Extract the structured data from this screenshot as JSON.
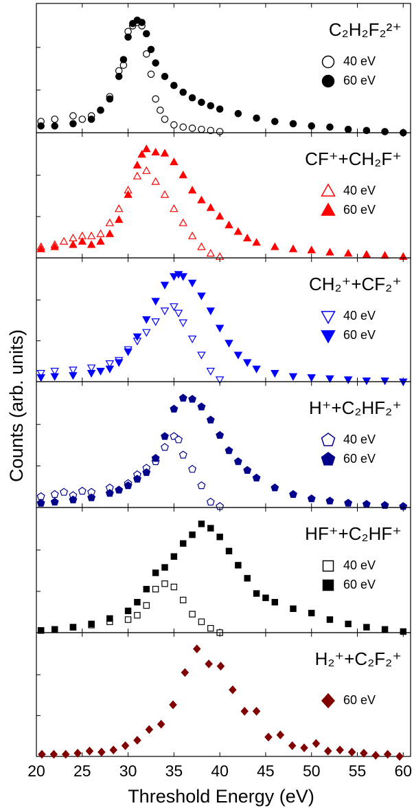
{
  "ylabel": "Counts (arb. units)",
  "chart_data": [
    {
      "type": "scatter",
      "title": "C₂H₂F₂²⁺",
      "xlim": [
        20,
        60.8
      ],
      "ylim": [
        0,
        1.1
      ],
      "series": [
        {
          "name": "40 eV",
          "color": "#000000",
          "marker": "circle",
          "filled": false,
          "x": [
            20.5,
            22,
            24,
            25,
            26,
            27,
            28,
            29,
            29.5,
            30,
            30.5,
            31,
            31.5,
            32,
            32.5,
            33,
            33.5,
            34,
            35,
            36,
            37,
            38,
            39,
            40
          ],
          "values": [
            0.1,
            0.12,
            0.15,
            0.12,
            0.15,
            0.2,
            0.32,
            0.55,
            0.6,
            0.9,
            0.95,
            0.98,
            0.95,
            0.7,
            0.52,
            0.3,
            0.2,
            0.12,
            0.07,
            0.05,
            0.04,
            0.03,
            0.02,
            0.01
          ]
        },
        {
          "name": "60 eV",
          "color": "#000000",
          "marker": "circle",
          "filled": true,
          "x": [
            20.5,
            22,
            24,
            26,
            27,
            28,
            29,
            29.5,
            30,
            30.5,
            31,
            31.5,
            32,
            32.5,
            33,
            34,
            35,
            36,
            37,
            38,
            39,
            40,
            42,
            44,
            46,
            48,
            50,
            52,
            54,
            56,
            58,
            60
          ],
          "values": [
            0.06,
            0.06,
            0.08,
            0.12,
            0.2,
            0.3,
            0.5,
            0.65,
            0.85,
            0.97,
            1.0,
            0.98,
            0.88,
            0.74,
            0.62,
            0.5,
            0.42,
            0.36,
            0.31,
            0.27,
            0.24,
            0.21,
            0.17,
            0.13,
            0.1,
            0.08,
            0.06,
            0.05,
            0.03,
            0.02,
            0.01,
            0.0
          ]
        }
      ]
    },
    {
      "type": "scatter",
      "title": "CF⁺+CH₂F⁺",
      "xlim": [
        20,
        60.8
      ],
      "ylim": [
        0,
        1.1
      ],
      "series": [
        {
          "name": "40 eV",
          "color": "#ff0000",
          "marker": "triangle-up",
          "filled": false,
          "x": [
            20.5,
            22,
            23,
            24,
            25,
            26,
            27,
            28,
            29,
            30,
            31,
            32,
            33,
            34,
            35,
            36,
            37,
            38,
            39,
            40
          ],
          "values": [
            0.1,
            0.12,
            0.15,
            0.18,
            0.2,
            0.2,
            0.22,
            0.32,
            0.45,
            0.62,
            0.75,
            0.8,
            0.7,
            0.58,
            0.45,
            0.32,
            0.2,
            0.1,
            0.04,
            0.01
          ]
        },
        {
          "name": "60 eV",
          "color": "#ff0000",
          "marker": "triangle-up",
          "filled": true,
          "x": [
            20.5,
            22,
            24,
            25,
            26,
            27,
            28,
            29,
            30,
            31,
            31.5,
            32,
            33,
            34,
            35,
            36,
            37,
            38,
            39,
            40,
            41,
            42,
            43,
            44,
            46,
            48,
            50,
            52,
            54,
            56,
            58,
            60
          ],
          "values": [
            0.08,
            0.1,
            0.12,
            0.15,
            0.12,
            0.15,
            0.22,
            0.35,
            0.58,
            0.85,
            0.95,
            1.0,
            0.97,
            0.96,
            0.88,
            0.76,
            0.62,
            0.53,
            0.46,
            0.38,
            0.3,
            0.24,
            0.18,
            0.14,
            0.1,
            0.08,
            0.07,
            0.05,
            0.04,
            0.03,
            0.02,
            0.01
          ]
        }
      ]
    },
    {
      "type": "scatter",
      "title": "CH₂⁺+CF₂⁺",
      "xlim": [
        20,
        60.8
      ],
      "ylim": [
        0,
        1.1
      ],
      "series": [
        {
          "name": "40 eV",
          "color": "#0000ff",
          "marker": "triangle-down",
          "filled": false,
          "x": [
            20.5,
            22,
            24,
            26,
            28,
            29,
            30,
            31,
            32,
            33,
            34,
            35,
            35.5,
            36,
            37,
            38,
            39,
            40
          ],
          "values": [
            0.08,
            0.1,
            0.11,
            0.13,
            0.17,
            0.2,
            0.3,
            0.38,
            0.46,
            0.56,
            0.66,
            0.7,
            0.64,
            0.55,
            0.4,
            0.25,
            0.1,
            0.02
          ]
        },
        {
          "name": "60 eV",
          "color": "#0000ff",
          "marker": "triangle-down",
          "filled": true,
          "x": [
            20.5,
            22,
            24,
            26,
            27,
            28,
            29,
            30,
            31,
            32,
            33,
            34,
            35,
            35.5,
            36,
            37,
            38,
            39,
            40,
            41,
            42,
            43,
            44,
            46,
            48,
            50,
            52,
            54,
            56,
            58,
            60
          ],
          "values": [
            0.04,
            0.05,
            0.06,
            0.08,
            0.1,
            0.12,
            0.18,
            0.28,
            0.42,
            0.58,
            0.75,
            0.9,
            0.98,
            1.0,
            0.98,
            0.92,
            0.8,
            0.66,
            0.5,
            0.36,
            0.25,
            0.18,
            0.12,
            0.08,
            0.05,
            0.04,
            0.03,
            0.02,
            0.01,
            0.01,
            0.0
          ]
        }
      ]
    },
    {
      "type": "scatter",
      "title": "H⁺+C₂HF₂⁺",
      "xlim": [
        20,
        60.8
      ],
      "ylim": [
        0,
        1.1
      ],
      "series": [
        {
          "name": "40 eV",
          "color": "#00008b",
          "marker": "pentagon",
          "filled": false,
          "x": [
            20.5,
            22,
            23,
            24,
            25,
            26,
            28,
            30,
            31,
            32,
            33,
            34,
            35,
            35.5,
            36,
            37,
            38,
            39,
            40
          ],
          "values": [
            0.1,
            0.12,
            0.14,
            0.11,
            0.15,
            0.14,
            0.18,
            0.22,
            0.3,
            0.36,
            0.42,
            0.55,
            0.65,
            0.62,
            0.48,
            0.35,
            0.2,
            0.05,
            0.01
          ]
        },
        {
          "name": "60 eV",
          "color": "#00008b",
          "marker": "pentagon",
          "filled": true,
          "x": [
            20.5,
            22,
            24,
            26,
            28,
            29,
            30,
            31,
            32,
            33,
            34,
            35,
            36,
            37,
            38,
            39,
            40,
            41,
            42,
            43,
            44,
            46,
            48,
            50,
            52,
            54,
            56,
            58,
            60
          ],
          "values": [
            0.04,
            0.05,
            0.07,
            0.09,
            0.13,
            0.16,
            0.2,
            0.26,
            0.32,
            0.45,
            0.65,
            0.9,
            1.0,
            0.99,
            0.92,
            0.8,
            0.66,
            0.52,
            0.42,
            0.34,
            0.27,
            0.18,
            0.12,
            0.08,
            0.06,
            0.04,
            0.03,
            0.02,
            0.01
          ]
        }
      ]
    },
    {
      "type": "scatter",
      "title": "HF⁺+C₂HF⁺",
      "xlim": [
        20,
        60.8
      ],
      "ylim": [
        0,
        1.1
      ],
      "series": [
        {
          "name": "40 eV",
          "color": "#000000",
          "marker": "square",
          "filled": false,
          "x": [
            20.5,
            22,
            24,
            26,
            28,
            30,
            31,
            32,
            33,
            34,
            35,
            36,
            37,
            38,
            39,
            40
          ],
          "values": [
            0.02,
            0.03,
            0.05,
            0.07,
            0.1,
            0.12,
            0.16,
            0.25,
            0.4,
            0.45,
            0.42,
            0.3,
            0.17,
            0.1,
            0.04,
            0.0
          ]
        },
        {
          "name": "60 eV",
          "color": "#000000",
          "marker": "square",
          "filled": true,
          "x": [
            20.5,
            22,
            24,
            26,
            28,
            30,
            31,
            32,
            33,
            34,
            35,
            36,
            37,
            38,
            39,
            40,
            41,
            42,
            43,
            44,
            45,
            46,
            48,
            50,
            52,
            54,
            56,
            58,
            60
          ],
          "values": [
            0.02,
            0.03,
            0.05,
            0.08,
            0.13,
            0.2,
            0.28,
            0.4,
            0.55,
            0.6,
            0.7,
            0.82,
            0.9,
            1.0,
            0.96,
            0.88,
            0.75,
            0.62,
            0.5,
            0.36,
            0.32,
            0.28,
            0.22,
            0.18,
            0.12,
            0.08,
            0.05,
            0.03,
            0.01
          ]
        }
      ]
    },
    {
      "type": "scatter",
      "title": "H₂⁺+C₂F₂⁺",
      "xlim": [
        20,
        60.8
      ],
      "ylim": [
        0,
        1.1
      ],
      "xlabel": "Threshold Energy (eV)",
      "xticks": [
        20,
        25,
        30,
        35,
        40,
        45,
        50,
        55,
        60
      ],
      "series": [
        {
          "name": "60 eV",
          "color": "#800000",
          "marker": "diamond",
          "filled": true,
          "x": [
            20.6,
            21.9,
            23.2,
            24.5,
            25.8,
            27.1,
            28.4,
            29.7,
            31,
            32.3,
            33.6,
            34.9,
            36.2,
            37.5,
            38.8,
            40.1,
            41.4,
            42.7,
            44,
            45.3,
            46.6,
            47.9,
            49.2,
            50.5,
            51.8,
            53.1,
            54.4,
            55.7,
            57,
            58.3,
            59.6
          ],
          "values": [
            0.02,
            0.02,
            0.02,
            0.03,
            0.05,
            0.04,
            0.06,
            0.1,
            0.15,
            0.25,
            0.3,
            0.48,
            0.78,
            1.0,
            0.86,
            0.84,
            0.62,
            0.42,
            0.42,
            0.18,
            0.2,
            0.1,
            0.08,
            0.12,
            0.05,
            0.06,
            0.04,
            0.03,
            0.01,
            0.02,
            0.0
          ]
        }
      ]
    }
  ]
}
